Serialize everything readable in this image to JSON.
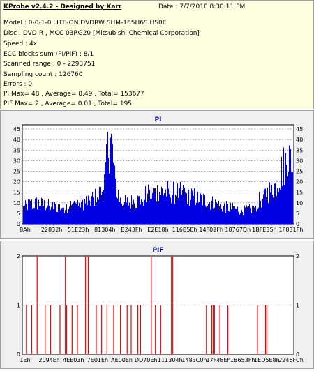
{
  "info": {
    "title": "KProbe v2.4.2 - Designed by Karr",
    "date": "Date : 7/7/2010 8:30:11 PM",
    "lines": [
      "Model : 0-0-1-0 LITE-ON DVDRW SHM-165H6S HS0E",
      "Disc : DVD-R , MCC 03RG20  [Mitsubishi Chemical Corporation]",
      "Speed : 4x",
      "ECC blocks sum (PI/PIF) : 8/1",
      "Scanned range : 0 - 2293751",
      "Sampling count : 126760",
      "Errors : 0",
      "PI Max= 48 , Average= 8.49 , Total= 153677",
      "PIF Max= 2 , Average= 0.01 , Total= 195"
    ]
  },
  "chart_data": [
    {
      "type": "bar",
      "title": "PI",
      "ylim": [
        0,
        47
      ],
      "yticks": [
        0,
        5,
        10,
        15,
        20,
        25,
        30,
        35,
        40,
        45
      ],
      "xticks": [
        "8Ah",
        "22832h",
        "51E23h",
        "81304h",
        "B243Fh",
        "E2E18h",
        "116B5Eh",
        "14F02Fh",
        "18767Dh",
        "1BFE35h",
        "1F831Fh"
      ],
      "grid": true,
      "color": "#0000e0",
      "profile": [
        [
          0,
          8
        ],
        [
          0.02,
          10
        ],
        [
          0.05,
          11
        ],
        [
          0.08,
          10
        ],
        [
          0.12,
          9
        ],
        [
          0.16,
          9
        ],
        [
          0.2,
          11
        ],
        [
          0.24,
          12
        ],
        [
          0.27,
          14
        ],
        [
          0.29,
          16
        ],
        [
          0.305,
          25
        ],
        [
          0.315,
          40
        ],
        [
          0.322,
          46
        ],
        [
          0.33,
          40
        ],
        [
          0.34,
          22
        ],
        [
          0.36,
          12
        ],
        [
          0.38,
          11
        ],
        [
          0.42,
          12
        ],
        [
          0.46,
          15
        ],
        [
          0.5,
          17
        ],
        [
          0.54,
          17
        ],
        [
          0.58,
          16
        ],
        [
          0.62,
          15
        ],
        [
          0.66,
          13
        ],
        [
          0.7,
          11
        ],
        [
          0.74,
          9
        ],
        [
          0.78,
          8
        ],
        [
          0.82,
          7
        ],
        [
          0.85,
          8
        ],
        [
          0.87,
          12
        ],
        [
          0.9,
          16
        ],
        [
          0.93,
          20
        ],
        [
          0.96,
          30
        ],
        [
          0.98,
          36
        ],
        [
          1.0,
          34
        ]
      ]
    },
    {
      "type": "bar",
      "title": "PIF",
      "ylim": [
        0,
        2
      ],
      "yticks": [
        0,
        1,
        2
      ],
      "xticks": [
        "1Eh",
        "2094Eh",
        "4EE03h",
        "7E01Eh",
        "AE00Eh",
        "DD70Eh",
        "111304h",
        "1483C0h",
        "17F48Eh",
        "1B653Fh",
        "1ED5E8h",
        "2246FCh"
      ],
      "grid": true,
      "color": "#ff0000",
      "bars": [
        [
          0.01,
          1
        ],
        [
          0.03,
          1
        ],
        [
          0.05,
          2
        ],
        [
          0.08,
          1
        ],
        [
          0.1,
          1
        ],
        [
          0.135,
          1
        ],
        [
          0.155,
          2
        ],
        [
          0.16,
          1
        ],
        [
          0.18,
          1
        ],
        [
          0.2,
          1
        ],
        [
          0.23,
          2
        ],
        [
          0.24,
          2
        ],
        [
          0.27,
          1
        ],
        [
          0.29,
          1
        ],
        [
          0.31,
          1
        ],
        [
          0.335,
          1
        ],
        [
          0.36,
          1
        ],
        [
          0.385,
          1
        ],
        [
          0.4,
          1
        ],
        [
          0.425,
          1
        ],
        [
          0.435,
          1
        ],
        [
          0.475,
          2
        ],
        [
          0.49,
          1
        ],
        [
          0.51,
          1
        ],
        [
          0.55,
          2
        ],
        [
          0.555,
          2
        ],
        [
          0.68,
          1
        ],
        [
          0.7,
          1
        ],
        [
          0.705,
          1
        ],
        [
          0.71,
          1
        ],
        [
          0.73,
          1
        ],
        [
          0.76,
          1
        ],
        [
          0.87,
          1
        ],
        [
          0.9,
          1
        ],
        [
          0.905,
          1
        ]
      ]
    }
  ]
}
